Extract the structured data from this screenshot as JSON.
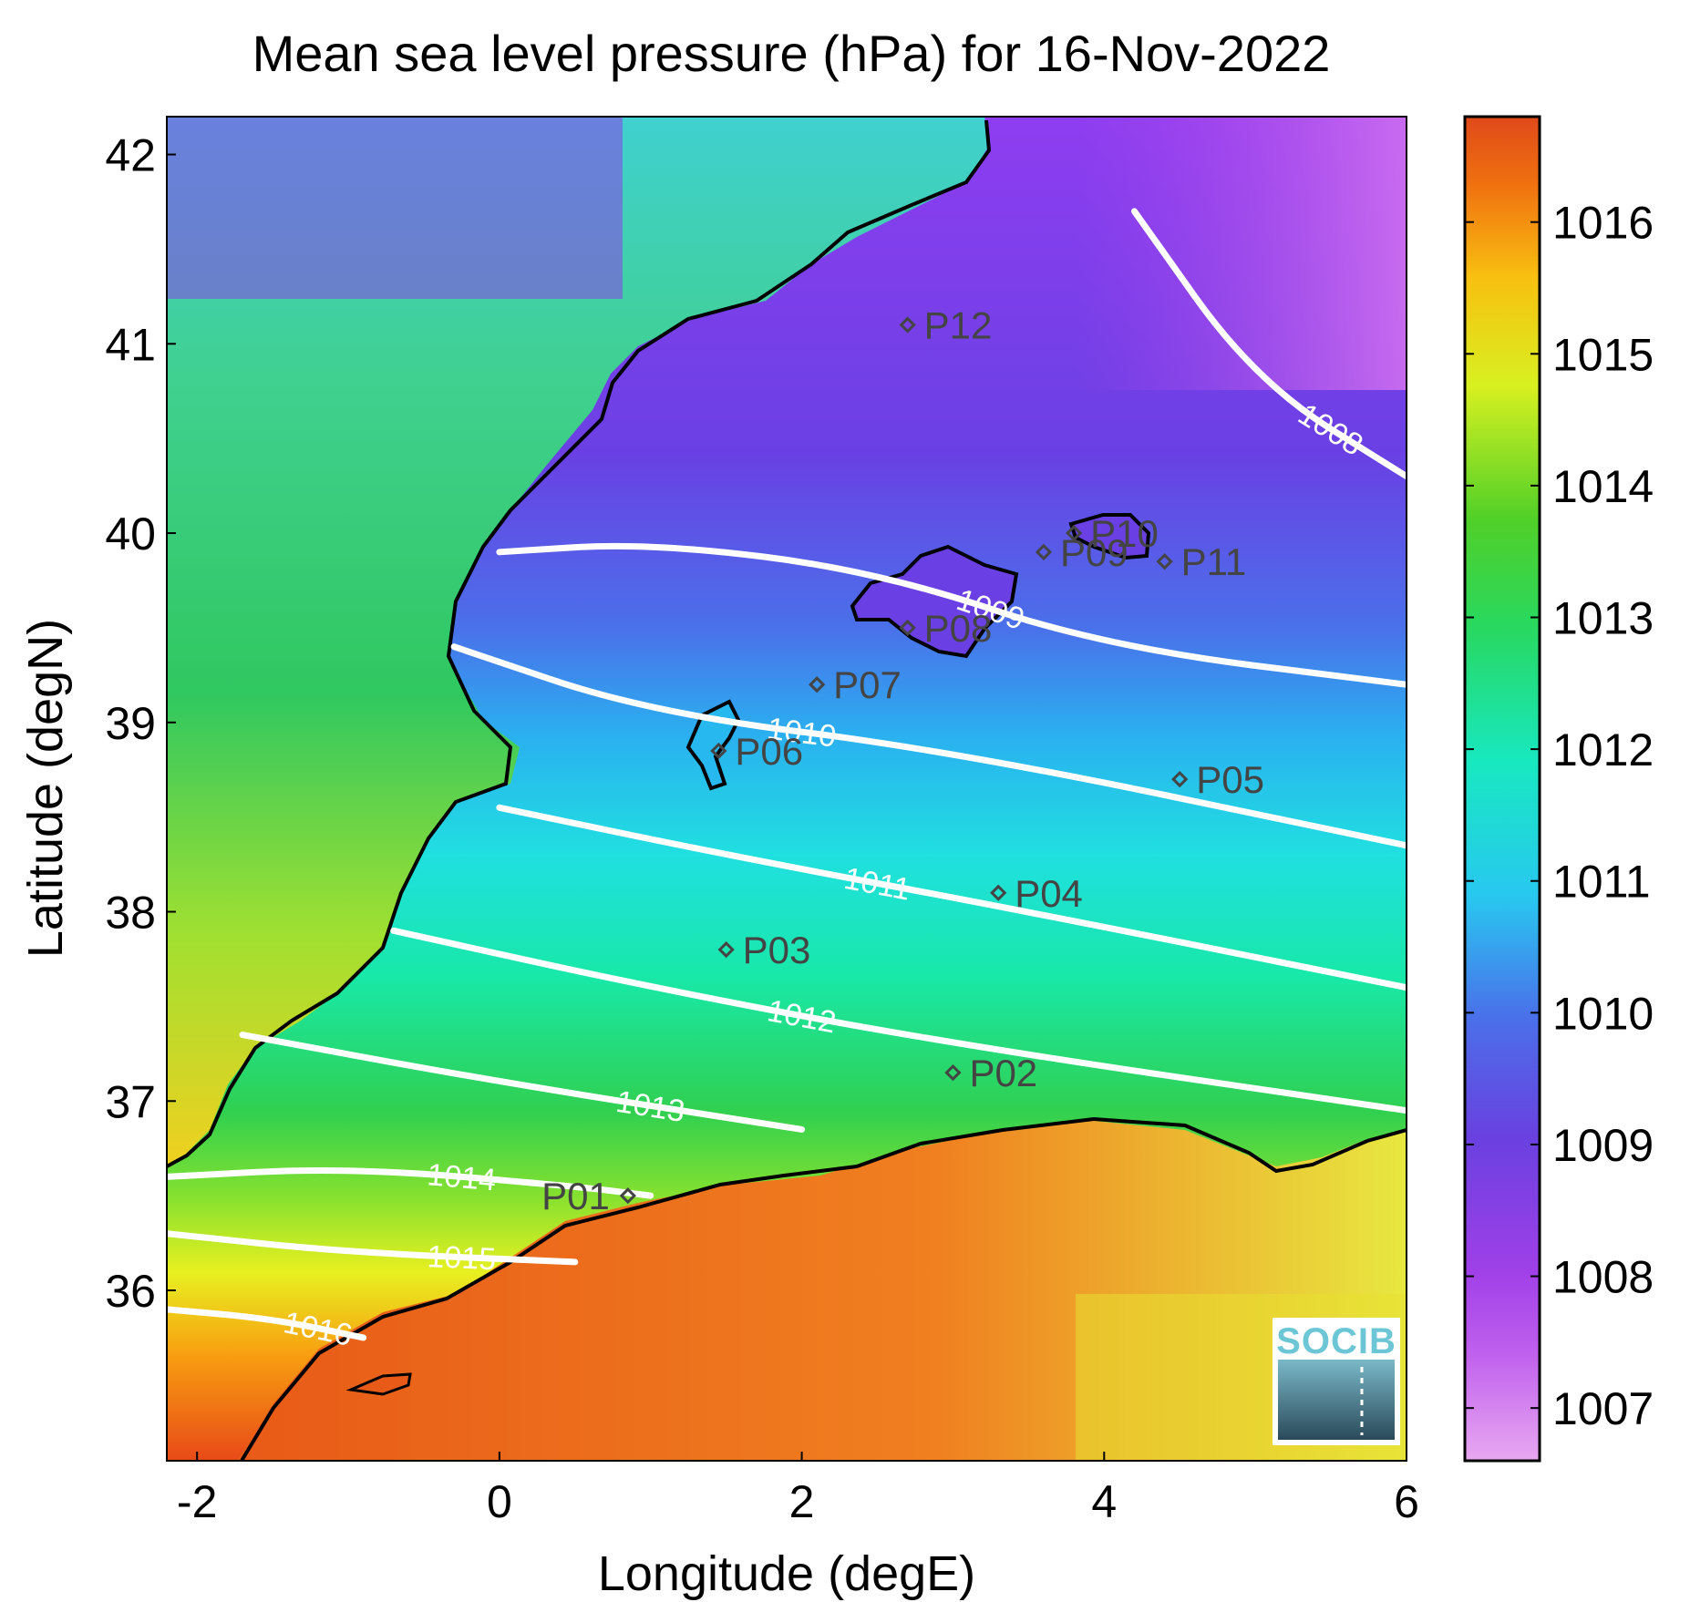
{
  "chart_data": {
    "type": "heatmap",
    "title": "Mean sea level pressure (hPa) for 16-Nov-2022",
    "xlabel": "Longitude (degE)",
    "ylabel": "Latitude (degN)",
    "xlim": [
      -2.2,
      6.0
    ],
    "ylim": [
      35.1,
      42.2
    ],
    "x_ticks": [
      -2,
      0,
      2,
      4,
      6
    ],
    "y_ticks": [
      36,
      37,
      38,
      39,
      40,
      41,
      42
    ],
    "colorbar": {
      "range": [
        1006.6,
        1016.8
      ],
      "ticks": [
        1007,
        1008,
        1009,
        1010,
        1011,
        1012,
        1013,
        1014,
        1015,
        1016
      ],
      "colors": [
        "#e8a8f0",
        "#b040e8",
        "#7040e0",
        "#3a8cf0",
        "#20d8f0",
        "#18e8a0",
        "#30d030",
        "#d0f020",
        "#f8c010",
        "#f06010",
        "#e04a1a"
      ]
    },
    "contours": [
      {
        "level": "1008",
        "points": [
          [
            4.2,
            41.7
          ],
          [
            5.0,
            40.8
          ],
          [
            6.0,
            40.3
          ]
        ]
      },
      {
        "level": "1009",
        "points": [
          [
            0.0,
            39.9
          ],
          [
            1.0,
            39.95
          ],
          [
            2.5,
            39.8
          ],
          [
            4.0,
            39.4
          ],
          [
            6.0,
            39.2
          ]
        ]
      },
      {
        "level": "1010",
        "points": [
          [
            -0.3,
            39.4
          ],
          [
            1.0,
            39.05
          ],
          [
            3.0,
            38.85
          ],
          [
            6.0,
            38.35
          ]
        ]
      },
      {
        "level": "1011",
        "points": [
          [
            0.0,
            38.55
          ],
          [
            1.5,
            38.3
          ],
          [
            3.5,
            38.0
          ],
          [
            6.0,
            37.6
          ]
        ]
      },
      {
        "level": "1012",
        "points": [
          [
            -0.7,
            37.9
          ],
          [
            1.0,
            37.6
          ],
          [
            3.0,
            37.3
          ],
          [
            6.0,
            36.95
          ]
        ]
      },
      {
        "level": "1013",
        "points": [
          [
            -1.7,
            37.35
          ],
          [
            0.0,
            37.1
          ],
          [
            2.0,
            36.85
          ]
        ]
      },
      {
        "level": "1014",
        "points": [
          [
            -2.2,
            36.6
          ],
          [
            -1.0,
            36.65
          ],
          [
            0.5,
            36.55
          ],
          [
            1.0,
            36.5
          ]
        ]
      },
      {
        "level": "1015",
        "points": [
          [
            -2.2,
            36.3
          ],
          [
            -1.0,
            36.2
          ],
          [
            0.5,
            36.15
          ]
        ]
      },
      {
        "level": "1016",
        "points": [
          [
            -2.2,
            35.9
          ],
          [
            -1.5,
            35.85
          ],
          [
            -0.9,
            35.75
          ]
        ]
      }
    ],
    "stations": [
      {
        "name": "P01",
        "lon": 0.85,
        "lat": 36.5
      },
      {
        "name": "P02",
        "lon": 3.0,
        "lat": 37.15
      },
      {
        "name": "P03",
        "lon": 1.5,
        "lat": 37.8
      },
      {
        "name": "P04",
        "lon": 3.3,
        "lat": 38.1
      },
      {
        "name": "P05",
        "lon": 4.5,
        "lat": 38.7
      },
      {
        "name": "P06",
        "lon": 1.45,
        "lat": 38.85
      },
      {
        "name": "P07",
        "lon": 2.1,
        "lat": 39.2
      },
      {
        "name": "P08",
        "lon": 2.7,
        "lat": 39.5
      },
      {
        "name": "P09",
        "lon": 3.6,
        "lat": 39.9
      },
      {
        "name": "P10",
        "lon": 3.8,
        "lat": 40.0
      },
      {
        "name": "P11",
        "lon": 4.4,
        "lat": 39.85
      },
      {
        "name": "P12",
        "lon": 2.7,
        "lat": 41.1
      }
    ]
  },
  "logo": {
    "text": "SOCIB"
  }
}
